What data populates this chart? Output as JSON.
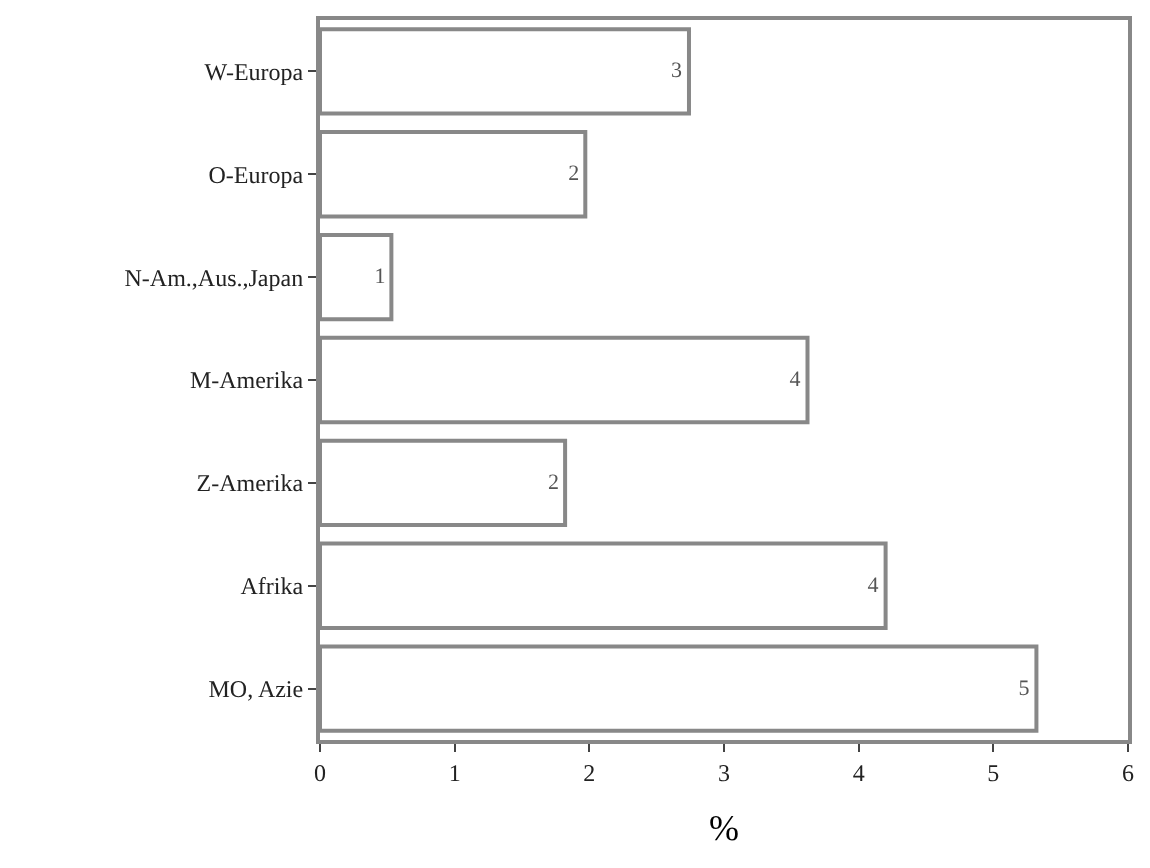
{
  "chart_data": {
    "type": "bar",
    "orientation": "horizontal",
    "xlabel": "%",
    "categories": [
      "W-Europa",
      "O-Europa",
      "N-Am.,Aus.,Japan",
      "M-Amerika",
      "Z-Amerika",
      "Afrika",
      "MO, Azie"
    ],
    "values": [
      2.74,
      1.97,
      0.53,
      3.62,
      1.82,
      4.2,
      5.32
    ],
    "value_labels": [
      "3",
      "2",
      "1",
      "4",
      "2",
      "4",
      "5"
    ],
    "color": "#ffffff",
    "xlim": [
      0,
      6
    ],
    "xticks": [
      0,
      1,
      2,
      3,
      4,
      5,
      6
    ]
  }
}
